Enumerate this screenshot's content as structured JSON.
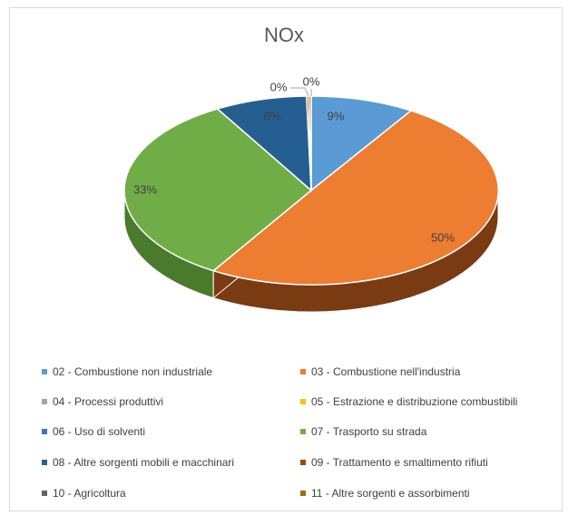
{
  "chart_data": {
    "type": "pie",
    "title": "NOx",
    "three_d": true,
    "legend_position": "bottom",
    "slices": [
      {
        "label": "02 - Combustione non industriale",
        "value": 9,
        "display": "9%",
        "color": "#5b9bd5",
        "side_color": "#3a6f9f"
      },
      {
        "label": "03 - Combustione nell'industria",
        "value": 50,
        "display": "50%",
        "color": "#ed7d31",
        "side_color": "#7a3a12"
      },
      {
        "label": "04 - Processi produttivi",
        "value": 0,
        "display": "",
        "color": "#a5a5a5",
        "side_color": "#6e6e6e"
      },
      {
        "label": "05 - Estrazione e distribuzione combustibili",
        "value": 0,
        "display": "",
        "color": "#ffc000",
        "side_color": "#a07800"
      },
      {
        "label": "06 - Uso di solventi",
        "value": 0,
        "display": "",
        "color": "#4472c4",
        "side_color": "#2a4a85"
      },
      {
        "label": "07 - Trasporto su strada",
        "value": 33,
        "display": "33%",
        "color": "#70ad47",
        "side_color": "#4a7a2c"
      },
      {
        "label": "08 - Altre sorgenti mobili e macchinari",
        "value": 8,
        "display": "8%",
        "color": "#255e91",
        "side_color": "#163a5c"
      },
      {
        "label": "09 - Trattamento e smaltimento rifiuti",
        "value": 0.2,
        "display": "0%",
        "color": "#9e480e",
        "side_color": "#5a2a08"
      },
      {
        "label": "10 - Agricoltura",
        "value": 0,
        "display": "",
        "color": "#636363",
        "side_color": "#3a3a3a"
      },
      {
        "label": "11 - Altre sorgenti e assorbimenti",
        "value": 0.2,
        "display": "0%",
        "color": "#997300",
        "side_color": "#5c4500"
      }
    ]
  }
}
